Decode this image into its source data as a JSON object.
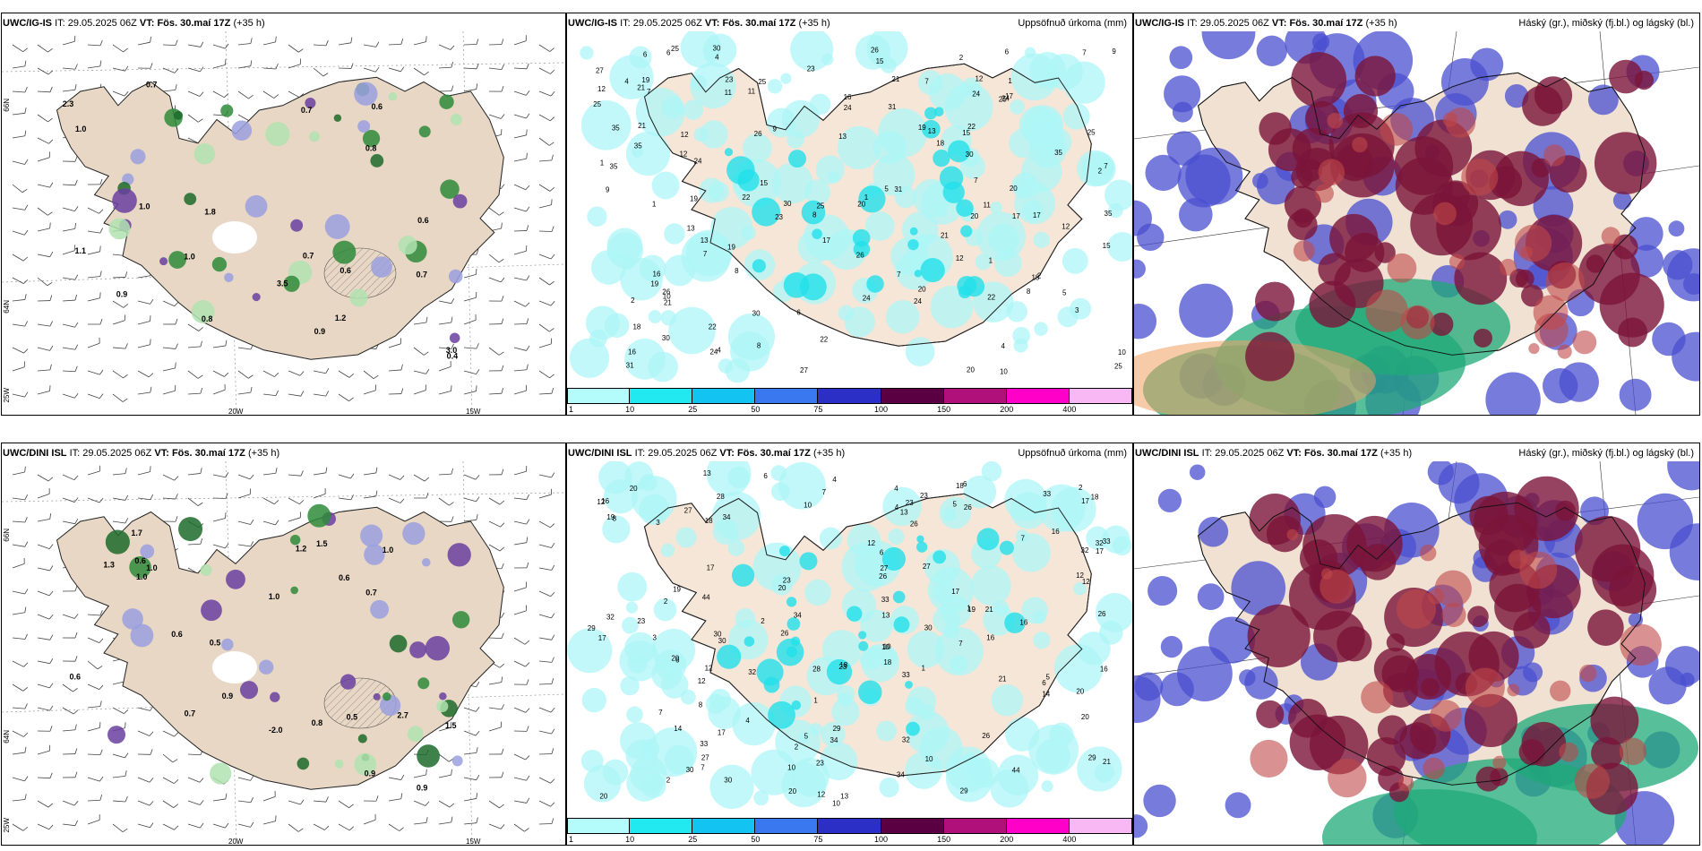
{
  "rows": [
    {
      "model": "UWC/IG-IS",
      "it_label": "IT:",
      "it_value": "29.05.2025 06Z",
      "vt_label": "VT:",
      "vt_value": "Fös. 30.maí 17Z",
      "lead": "(+35 h)",
      "lon_labels": [
        "20W",
        "15W"
      ],
      "lat_labels": [
        "66N",
        "64N",
        "25W"
      ]
    },
    {
      "model": "UWC/DINI ISL",
      "it_label": "IT:",
      "it_value": "29.05.2025 06Z",
      "vt_label": "VT:",
      "vt_value": "Fös. 30.maí 17Z",
      "lead": "(+35 h)",
      "lon_labels": [
        "20W",
        "15W"
      ],
      "lat_labels": [
        "66N",
        "64N",
        "25W"
      ]
    }
  ],
  "precip_title": "Uppsöfnuð úrkoma (mm)",
  "cloud_title": "Háský (gr.), miðský (fj.bl.) og lágský (bl.)",
  "precip_legend": {
    "ticks": [
      "1",
      "10",
      "25",
      "50",
      "75",
      "100",
      "150",
      "200",
      "400"
    ],
    "colors": [
      "#b4fbfb",
      "#22e9ef",
      "#13c3f2",
      "#3a78f0",
      "#2c2fc6",
      "#5a0042",
      "#b0107a",
      "#ff00c8",
      "#f8b8f4"
    ]
  },
  "temp_labels": [
    [
      "1.8",
      "0.7",
      "0.6",
      "1.0",
      "2.3",
      "0.7",
      "0.9",
      "1.2",
      "1.0",
      "3.5",
      "0.7",
      "0.8",
      "0.6",
      "0.4",
      "1.1",
      "3.0",
      "0.7",
      "0.8",
      "0.9",
      "1.0",
      "0.6"
    ],
    [
      "0.6",
      "0.7",
      "0.5",
      "0.9",
      "1.3",
      "1.0",
      "0.6",
      "1.5",
      "0.9",
      "2.7",
      "1.0",
      "1.2",
      "0.8",
      "0.6",
      "1.5",
      "0.9",
      "0.7",
      "1.0",
      "-2.0",
      "1.0",
      "0.5",
      "0.6",
      "1.7"
    ]
  ],
  "precip_labels": [
    [
      "2",
      "5",
      "15",
      "10",
      "19",
      "14",
      "17",
      "23",
      "30",
      "31",
      "26",
      "22",
      "35",
      "21",
      "27",
      "12",
      "9",
      "8",
      "13",
      "16",
      "20",
      "25",
      "24",
      "3",
      "4",
      "6",
      "7",
      "11",
      "18",
      "1"
    ],
    [
      "3",
      "5",
      "7",
      "13",
      "17",
      "28",
      "32",
      "23",
      "33",
      "30",
      "29",
      "34",
      "21",
      "19",
      "26",
      "20",
      "27",
      "44",
      "18",
      "8",
      "4",
      "6",
      "10",
      "14",
      "2",
      "1",
      "12",
      "16"
    ]
  ]
}
